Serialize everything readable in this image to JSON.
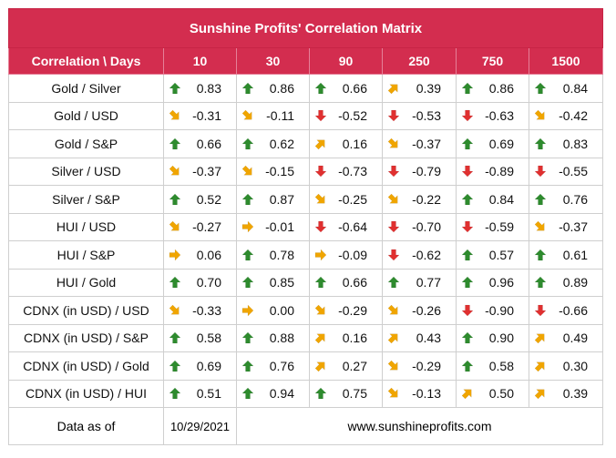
{
  "title": "Sunshine Profits' Correlation Matrix",
  "header": {
    "corner": "Correlation \\ Days",
    "days": [
      "10",
      "30",
      "90",
      "250",
      "750",
      "1500"
    ]
  },
  "colors": {
    "header_bg": "#d32d4f",
    "up": "#2e8b2e",
    "diag": "#f0a500",
    "side": "#f0a500",
    "down": "#e03030"
  },
  "rows": [
    {
      "label": "Gold / Silver",
      "cells": [
        {
          "arrow": "up",
          "value": "0.83"
        },
        {
          "arrow": "up",
          "value": "0.86"
        },
        {
          "arrow": "up",
          "value": "0.66"
        },
        {
          "arrow": "diag-up",
          "value": "0.39"
        },
        {
          "arrow": "up",
          "value": "0.86"
        },
        {
          "arrow": "up",
          "value": "0.84"
        }
      ]
    },
    {
      "label": "Gold / USD",
      "cells": [
        {
          "arrow": "diag-down",
          "value": "-0.31"
        },
        {
          "arrow": "diag-down",
          "value": "-0.11"
        },
        {
          "arrow": "down",
          "value": "-0.52"
        },
        {
          "arrow": "down",
          "value": "-0.53"
        },
        {
          "arrow": "down",
          "value": "-0.63"
        },
        {
          "arrow": "diag-down",
          "value": "-0.42"
        }
      ]
    },
    {
      "label": "Gold / S&P",
      "cells": [
        {
          "arrow": "up",
          "value": "0.66"
        },
        {
          "arrow": "up",
          "value": "0.62"
        },
        {
          "arrow": "diag-up",
          "value": "0.16"
        },
        {
          "arrow": "diag-down",
          "value": "-0.37"
        },
        {
          "arrow": "up",
          "value": "0.69"
        },
        {
          "arrow": "up",
          "value": "0.83"
        }
      ]
    },
    {
      "label": "Silver / USD",
      "cells": [
        {
          "arrow": "diag-down",
          "value": "-0.37"
        },
        {
          "arrow": "diag-down",
          "value": "-0.15"
        },
        {
          "arrow": "down",
          "value": "-0.73"
        },
        {
          "arrow": "down",
          "value": "-0.79"
        },
        {
          "arrow": "down",
          "value": "-0.89"
        },
        {
          "arrow": "down",
          "value": "-0.55"
        }
      ]
    },
    {
      "label": "Silver / S&P",
      "cells": [
        {
          "arrow": "up",
          "value": "0.52"
        },
        {
          "arrow": "up",
          "value": "0.87"
        },
        {
          "arrow": "diag-down",
          "value": "-0.25"
        },
        {
          "arrow": "diag-down",
          "value": "-0.22"
        },
        {
          "arrow": "up",
          "value": "0.84"
        },
        {
          "arrow": "up",
          "value": "0.76"
        }
      ]
    },
    {
      "label": "HUI / USD",
      "cells": [
        {
          "arrow": "diag-down",
          "value": "-0.27"
        },
        {
          "arrow": "right",
          "value": "-0.01"
        },
        {
          "arrow": "down",
          "value": "-0.64"
        },
        {
          "arrow": "down",
          "value": "-0.70"
        },
        {
          "arrow": "down",
          "value": "-0.59"
        },
        {
          "arrow": "diag-down",
          "value": "-0.37"
        }
      ]
    },
    {
      "label": "HUI / S&P",
      "cells": [
        {
          "arrow": "right",
          "value": "0.06"
        },
        {
          "arrow": "up",
          "value": "0.78"
        },
        {
          "arrow": "right",
          "value": "-0.09"
        },
        {
          "arrow": "down",
          "value": "-0.62"
        },
        {
          "arrow": "up",
          "value": "0.57"
        },
        {
          "arrow": "up",
          "value": "0.61"
        }
      ]
    },
    {
      "label": "HUI / Gold",
      "cells": [
        {
          "arrow": "up",
          "value": "0.70"
        },
        {
          "arrow": "up",
          "value": "0.85"
        },
        {
          "arrow": "up",
          "value": "0.66"
        },
        {
          "arrow": "up",
          "value": "0.77"
        },
        {
          "arrow": "up",
          "value": "0.96"
        },
        {
          "arrow": "up",
          "value": "0.89"
        }
      ]
    },
    {
      "label": "CDNX (in USD) / USD",
      "cells": [
        {
          "arrow": "diag-down",
          "value": "-0.33"
        },
        {
          "arrow": "right",
          "value": "0.00"
        },
        {
          "arrow": "diag-down",
          "value": "-0.29"
        },
        {
          "arrow": "diag-down",
          "value": "-0.26"
        },
        {
          "arrow": "down",
          "value": "-0.90"
        },
        {
          "arrow": "down",
          "value": "-0.66"
        }
      ]
    },
    {
      "label": "CDNX (in USD) / S&P",
      "cells": [
        {
          "arrow": "up",
          "value": "0.58"
        },
        {
          "arrow": "up",
          "value": "0.88"
        },
        {
          "arrow": "diag-up",
          "value": "0.16"
        },
        {
          "arrow": "diag-up",
          "value": "0.43"
        },
        {
          "arrow": "up",
          "value": "0.90"
        },
        {
          "arrow": "diag-up",
          "value": "0.49"
        }
      ]
    },
    {
      "label": "CDNX (in USD) / Gold",
      "cells": [
        {
          "arrow": "up",
          "value": "0.69"
        },
        {
          "arrow": "up",
          "value": "0.76"
        },
        {
          "arrow": "diag-up",
          "value": "0.27"
        },
        {
          "arrow": "diag-down",
          "value": "-0.29"
        },
        {
          "arrow": "up",
          "value": "0.58"
        },
        {
          "arrow": "diag-up",
          "value": "0.30"
        }
      ]
    },
    {
      "label": "CDNX (in USD) / HUI",
      "cells": [
        {
          "arrow": "up",
          "value": "0.51"
        },
        {
          "arrow": "up",
          "value": "0.94"
        },
        {
          "arrow": "up",
          "value": "0.75"
        },
        {
          "arrow": "diag-down",
          "value": "-0.13"
        },
        {
          "arrow": "diag-up",
          "value": "0.50"
        },
        {
          "arrow": "diag-up",
          "value": "0.39"
        }
      ]
    }
  ],
  "footer": {
    "label": "Data as of",
    "date": "10/29/2021",
    "website": "www.sunshineprofits.com"
  }
}
